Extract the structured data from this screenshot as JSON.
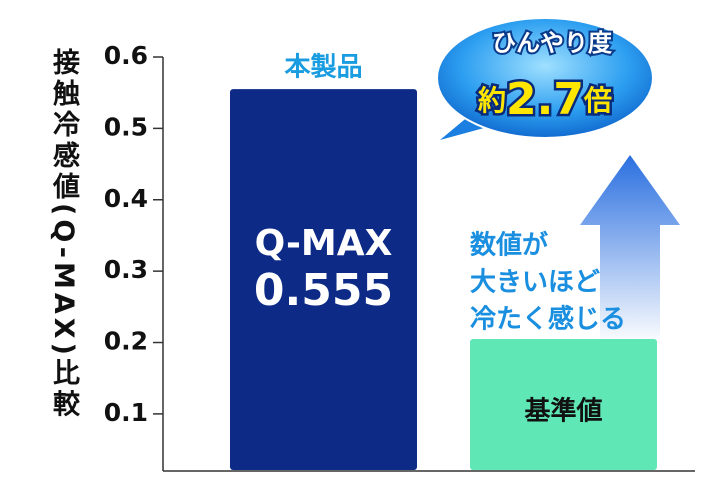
{
  "chart_data": {
    "type": "bar",
    "y_axis_label": "接触冷感値(Q-MAX)比較",
    "categories": [
      "本製品",
      "基準値"
    ],
    "values": [
      0.555,
      0.205
    ],
    "colors": [
      "#0c2a86",
      "#5fe8b6"
    ],
    "ylim": [
      0.02,
      0.6
    ],
    "yticks": [
      0.1,
      0.2,
      0.3,
      0.4,
      0.5,
      0.6
    ],
    "annotations": {
      "bar_label": "Q-MAX",
      "bubble_title": "ひんやり度",
      "bubble_prefix": "約",
      "bubble_ratio": "2.7",
      "bubble_suffix": "倍",
      "note": [
        "数値が",
        "大きいほど",
        "冷たく感じる"
      ]
    }
  }
}
